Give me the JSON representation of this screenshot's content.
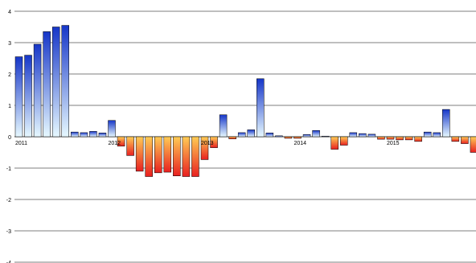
{
  "chart_data": {
    "type": "bar",
    "title": "",
    "xlabel": "",
    "ylabel": "",
    "ylim": [
      -4,
      4
    ],
    "y_ticks": [
      "-4",
      "-3",
      "-2",
      "-1",
      "0",
      "1",
      "2",
      "3",
      "4"
    ],
    "grid": true,
    "legend": "none",
    "positive_gradient": [
      "#1636c8",
      "#e6f8ff"
    ],
    "negative_gradient": [
      "#ffcc55",
      "#e82020"
    ],
    "year_labels": [
      {
        "label": "2011",
        "index": 0
      },
      {
        "label": "2012",
        "index": 10
      },
      {
        "label": "2013",
        "index": 20
      },
      {
        "label": "2014",
        "index": 30
      },
      {
        "label": "2015",
        "index": 40
      }
    ],
    "values": [
      2.55,
      2.6,
      2.95,
      3.35,
      3.5,
      3.55,
      0.15,
      0.13,
      0.17,
      0.12,
      0.52,
      -0.3,
      -0.6,
      -1.1,
      -1.27,
      -1.15,
      -1.13,
      -1.25,
      -1.27,
      -1.27,
      -0.73,
      -0.35,
      0.7,
      -0.07,
      0.13,
      0.22,
      1.85,
      0.12,
      0.03,
      -0.05,
      -0.05,
      0.07,
      0.2,
      0.02,
      -0.4,
      -0.27,
      0.13,
      0.1,
      0.08,
      -0.08,
      -0.08,
      -0.1,
      -0.1,
      -0.15,
      0.15,
      0.13,
      0.87,
      -0.15,
      -0.22,
      -0.5
    ]
  }
}
